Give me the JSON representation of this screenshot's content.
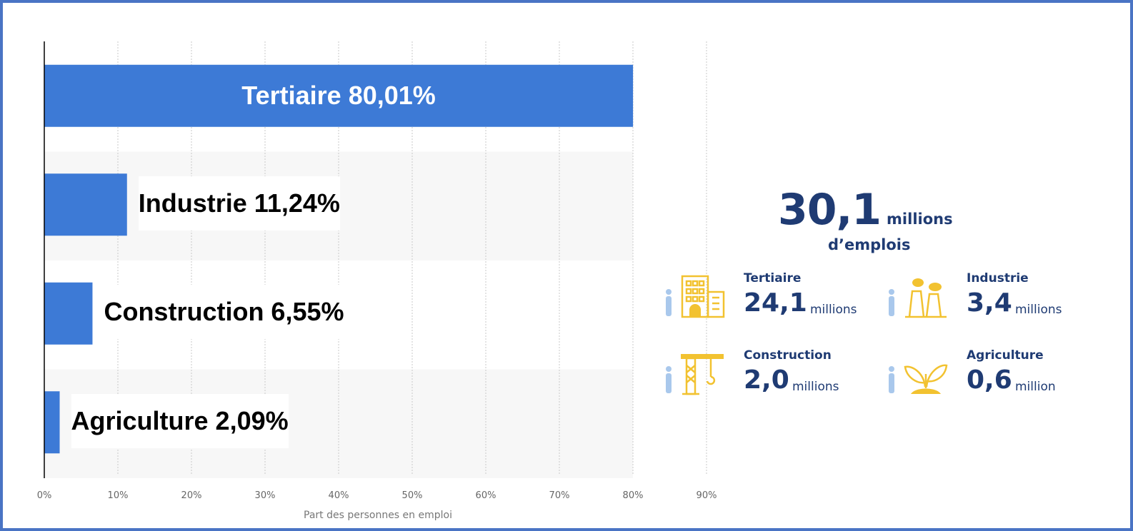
{
  "chart_data": {
    "type": "bar",
    "orientation": "horizontal",
    "categories": [
      "Tertiaire",
      "Industrie",
      "Construction",
      "Agriculture"
    ],
    "values": [
      80.01,
      11.24,
      6.55,
      2.09
    ],
    "bar_labels": [
      "Tertiaire 80,01%",
      "Industrie 11,24%",
      "Construction 6,55%",
      "Agriculture 2,09%"
    ],
    "xlim": [
      0,
      90
    ],
    "xticks": [
      "0%",
      "10%",
      "20%",
      "30%",
      "40%",
      "50%",
      "60%",
      "70%",
      "80%",
      "90%"
    ],
    "xlabel": "Part des personnes en emploi",
    "grid": true,
    "bar_color": "#3d7ad6"
  },
  "infographic": {
    "total_value": "30,1",
    "total_unit": "millions",
    "total_subtitle": "d’emplois",
    "accent_color": "#f2c230",
    "text_color": "#1f3b73",
    "sectors": [
      {
        "name": "Tertiaire",
        "value": "24,1",
        "unit": "millions",
        "icon": "office-building-icon"
      },
      {
        "name": "Industrie",
        "value": "3,4",
        "unit": "millions",
        "icon": "factory-icon"
      },
      {
        "name": "Construction",
        "value": "2,0",
        "unit": "millions",
        "icon": "crane-icon"
      },
      {
        "name": "Agriculture",
        "value": "0,6",
        "unit": "million",
        "icon": "sprout-icon"
      }
    ]
  }
}
